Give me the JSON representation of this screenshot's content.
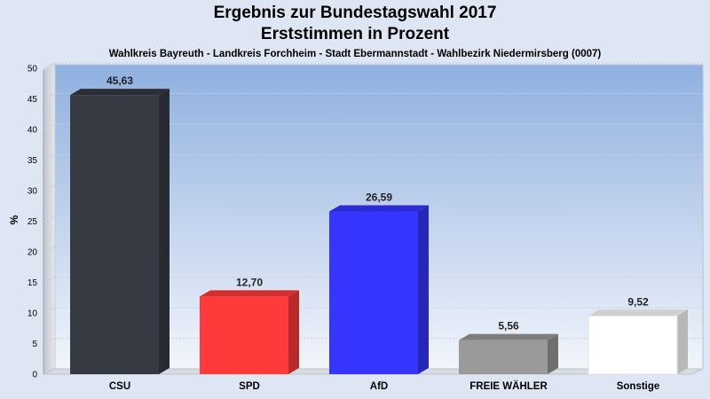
{
  "chart_data": {
    "type": "bar",
    "title": "Ergebnis zur Bundestagswahl 2017",
    "subtitle_line2": "Erststimmen in Prozent",
    "subtitle": "Wahlkreis Bayreuth - Landkreis Forchheim - Stadt Ebermannstadt - Wahlbezirk Niedermirsberg (0007)",
    "ylabel": "%",
    "xlabel": "",
    "ylim": [
      0,
      50
    ],
    "yticks": [
      0,
      5,
      10,
      15,
      20,
      25,
      30,
      35,
      40,
      45,
      50
    ],
    "categories": [
      "CSU",
      "SPD",
      "AfD",
      "FREIE WÄHLER",
      "Sonstige"
    ],
    "values": [
      45.63,
      12.7,
      26.59,
      5.56,
      9.52
    ],
    "value_labels": [
      "45,63",
      "12,70",
      "26,59",
      "5,56",
      "9,52"
    ],
    "colors": [
      "#363a42",
      "#ff3a3a",
      "#3535ff",
      "#9a9a9a",
      "#ffffff"
    ],
    "grid": true,
    "legend": "none"
  }
}
